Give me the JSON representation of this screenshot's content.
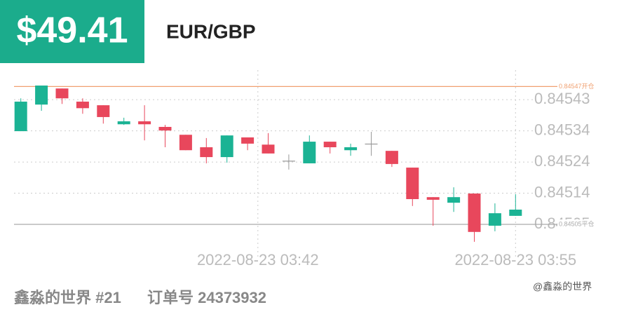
{
  "header": {
    "profit": "$49.41",
    "symbol": "EUR/GBP"
  },
  "chart_data": {
    "type": "candlestick",
    "x": [
      0,
      1,
      2,
      3,
      4,
      5,
      6,
      7,
      8,
      9,
      10,
      11,
      12,
      13,
      14,
      15,
      16,
      17,
      18,
      19,
      20,
      21,
      22,
      23,
      24
    ],
    "xlim": [
      -0.5,
      24.5
    ],
    "xticks": [
      {
        "value": 11.5,
        "label": "2022-08-23 03:42"
      },
      {
        "value": 24,
        "label": "2022-08-23 03:55"
      }
    ],
    "ylim": [
      0.844986,
      0.84552
    ],
    "yticks": [
      {
        "value": 0.84543,
        "label": "0.84543"
      },
      {
        "value": 0.845335,
        "label": "0.84534"
      },
      {
        "value": 0.84524,
        "label": "0.84524"
      },
      {
        "value": 0.845145,
        "label": "0.84514"
      },
      {
        "value": 0.84505,
        "label": "0.84505"
      }
    ],
    "grid": true,
    "up_color": "#1bb394",
    "down_color": "#e8475c",
    "flat_color": "#999999",
    "open": [
      0.845334,
      0.845415,
      0.845464,
      0.845424,
      0.845413,
      0.845355,
      0.845364,
      0.845347,
      0.845323,
      0.845285,
      0.845255,
      0.845315,
      0.845293,
      0.845244,
      0.845236,
      0.845302,
      0.845276,
      0.845296,
      0.845274,
      0.845223,
      0.845133,
      0.845116,
      0.845144,
      0.845046,
      0.845076
    ],
    "high": [
      0.845434,
      0.845473,
      0.845464,
      0.845434,
      0.845413,
      0.845375,
      0.845413,
      0.845353,
      0.845323,
      0.845313,
      0.845321,
      0.845315,
      0.845328,
      0.845263,
      0.845321,
      0.845302,
      0.845296,
      0.845332,
      0.845274,
      0.845223,
      0.845133,
      0.845163,
      0.845144,
      0.845114,
      0.845142
    ],
    "low": [
      0.845334,
      0.845396,
      0.845417,
      0.845387,
      0.845357,
      0.845353,
      0.845306,
      0.845285,
      0.845276,
      0.845236,
      0.845238,
      0.845276,
      0.845266,
      0.845217,
      0.845236,
      0.845266,
      0.845259,
      0.845259,
      0.845225,
      0.845106,
      0.845046,
      0.845088,
      0.844997,
      0.845029,
      0.845076
    ],
    "close": [
      0.845424,
      0.845473,
      0.845434,
      0.845404,
      0.845377,
      0.845364,
      0.845355,
      0.845336,
      0.845276,
      0.845255,
      0.845321,
      0.845296,
      0.845266,
      0.845244,
      0.845302,
      0.845285,
      0.845285,
      0.845296,
      0.845234,
      0.845127,
      0.845125,
      0.845133,
      0.845027,
      0.845084,
      0.845095
    ],
    "reference_lines": [
      {
        "value": 0.84547,
        "label": "0.84547开仓",
        "color": "#f0a070"
      },
      {
        "value": 0.84505,
        "label": "0.84505平仓",
        "color": "#aaaaaa"
      }
    ]
  },
  "footer": {
    "account": "鑫淼的世界 #21",
    "order": "订单号 24373932",
    "watermark": "@鑫淼的世界"
  }
}
